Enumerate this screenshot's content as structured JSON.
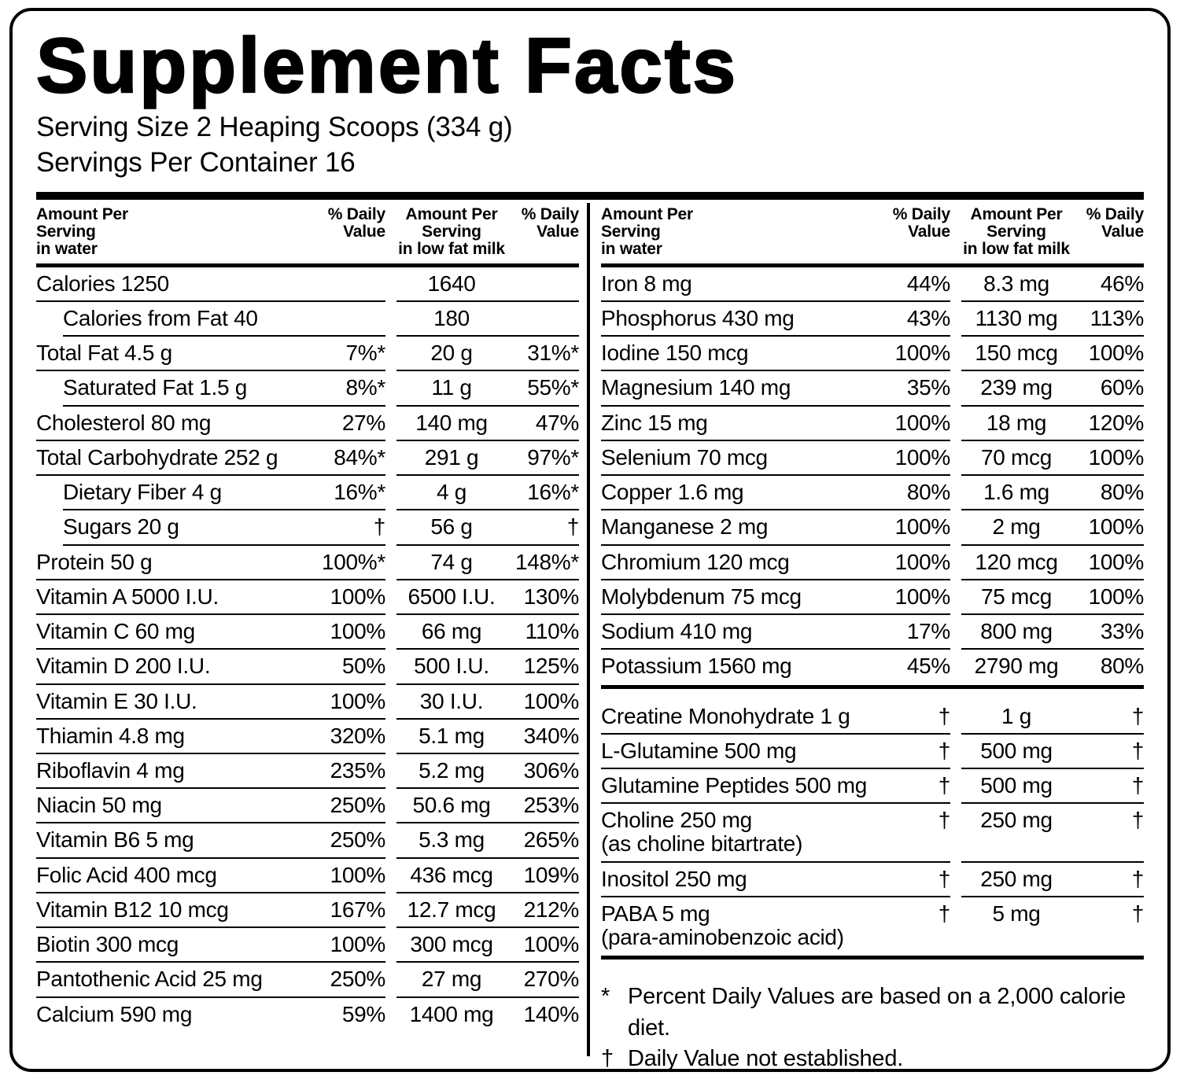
{
  "label": {
    "title": "Supplement Facts",
    "serving_size": "Serving Size 2 Heaping Scoops (334 g)",
    "servings_per_container": "Servings Per Container 16"
  },
  "colors": {
    "ink": "#000000",
    "paper": "#ffffff"
  },
  "column_headers": {
    "water": [
      "Amount Per",
      "Serving",
      "in water"
    ],
    "daily_value": [
      "% Daily",
      "Value"
    ],
    "milk": [
      "Amount Per",
      "Serving",
      "in low fat milk"
    ]
  },
  "table": {
    "left_rows": [
      {
        "name": "Calories 1250",
        "indent": false,
        "water_dv": "",
        "milk_amount": "1640",
        "milk_dv": ""
      },
      {
        "name": "Calories from Fat 40",
        "indent": true,
        "water_dv": "",
        "milk_amount": "180",
        "milk_dv": ""
      },
      {
        "name": "Total Fat 4.5 g",
        "indent": false,
        "water_dv": "7%*",
        "milk_amount": "20 g",
        "milk_dv": "31%*"
      },
      {
        "name": "Saturated Fat 1.5 g",
        "indent": true,
        "water_dv": "8%*",
        "milk_amount": "11 g",
        "milk_dv": "55%*"
      },
      {
        "name": "Cholesterol 80 mg",
        "indent": false,
        "water_dv": "27%",
        "milk_amount": "140 mg",
        "milk_dv": "47%"
      },
      {
        "name": "Total Carbohydrate 252 g",
        "indent": false,
        "water_dv": "84%*",
        "milk_amount": "291 g",
        "milk_dv": "97%*"
      },
      {
        "name": "Dietary Fiber 4 g",
        "indent": true,
        "water_dv": "16%*",
        "milk_amount": "4 g",
        "milk_dv": "16%*"
      },
      {
        "name": "Sugars 20 g",
        "indent": true,
        "water_dv": "†",
        "milk_amount": "56 g",
        "milk_dv": "†"
      },
      {
        "name": "Protein 50 g",
        "indent": false,
        "water_dv": "100%*",
        "milk_amount": "74 g",
        "milk_dv": "148%*"
      },
      {
        "name": "Vitamin A 5000 I.U.",
        "indent": false,
        "water_dv": "100%",
        "milk_amount": "6500 I.U.",
        "milk_dv": "130%"
      },
      {
        "name": "Vitamin C 60 mg",
        "indent": false,
        "water_dv": "100%",
        "milk_amount": "66 mg",
        "milk_dv": "110%"
      },
      {
        "name": "Vitamin D 200 I.U.",
        "indent": false,
        "water_dv": "50%",
        "milk_amount": "500 I.U.",
        "milk_dv": "125%"
      },
      {
        "name": "Vitamin E 30 I.U.",
        "indent": false,
        "water_dv": "100%",
        "milk_amount": "30 I.U.",
        "milk_dv": "100%"
      },
      {
        "name": "Thiamin 4.8 mg",
        "indent": false,
        "water_dv": "320%",
        "milk_amount": "5.1 mg",
        "milk_dv": "340%"
      },
      {
        "name": "Riboflavin 4 mg",
        "indent": false,
        "water_dv": "235%",
        "milk_amount": "5.2 mg",
        "milk_dv": "306%"
      },
      {
        "name": "Niacin 50 mg",
        "indent": false,
        "water_dv": "250%",
        "milk_amount": "50.6 mg",
        "milk_dv": "253%"
      },
      {
        "name": "Vitamin B6 5 mg",
        "indent": false,
        "water_dv": "250%",
        "milk_amount": "5.3 mg",
        "milk_dv": "265%"
      },
      {
        "name": "Folic Acid 400 mcg",
        "indent": false,
        "water_dv": "100%",
        "milk_amount": "436 mcg",
        "milk_dv": "109%"
      },
      {
        "name": "Vitamin B12 10 mcg",
        "indent": false,
        "water_dv": "167%",
        "milk_amount": "12.7 mcg",
        "milk_dv": "212%"
      },
      {
        "name": "Biotin 300 mcg",
        "indent": false,
        "water_dv": "100%",
        "milk_amount": "300 mcg",
        "milk_dv": "100%"
      },
      {
        "name": "Pantothenic Acid 25 mg",
        "indent": false,
        "water_dv": "250%",
        "milk_amount": "27 mg",
        "milk_dv": "270%"
      },
      {
        "name": "Calcium 590 mg",
        "indent": false,
        "water_dv": "59%",
        "milk_amount": "1400 mg",
        "milk_dv": "140%"
      }
    ],
    "right_minerals": [
      {
        "name": "Iron 8 mg",
        "indent": false,
        "water_dv": "44%",
        "milk_amount": "8.3 mg",
        "milk_dv": "46%"
      },
      {
        "name": "Phosphorus 430 mg",
        "indent": false,
        "water_dv": "43%",
        "milk_amount": "1130 mg",
        "milk_dv": "113%"
      },
      {
        "name": "Iodine 150 mcg",
        "indent": false,
        "water_dv": "100%",
        "milk_amount": "150 mcg",
        "milk_dv": "100%"
      },
      {
        "name": "Magnesium 140 mg",
        "indent": false,
        "water_dv": "35%",
        "milk_amount": "239 mg",
        "milk_dv": "60%"
      },
      {
        "name": "Zinc 15 mg",
        "indent": false,
        "water_dv": "100%",
        "milk_amount": "18 mg",
        "milk_dv": "120%"
      },
      {
        "name": "Selenium 70 mcg",
        "indent": false,
        "water_dv": "100%",
        "milk_amount": "70 mcg",
        "milk_dv": "100%"
      },
      {
        "name": "Copper 1.6 mg",
        "indent": false,
        "water_dv": "80%",
        "milk_amount": "1.6 mg",
        "milk_dv": "80%"
      },
      {
        "name": "Manganese 2 mg",
        "indent": false,
        "water_dv": "100%",
        "milk_amount": "2 mg",
        "milk_dv": "100%"
      },
      {
        "name": "Chromium 120 mcg",
        "indent": false,
        "water_dv": "100%",
        "milk_amount": "120 mcg",
        "milk_dv": "100%"
      },
      {
        "name": "Molybdenum 75 mcg",
        "indent": false,
        "water_dv": "100%",
        "milk_amount": "75 mcg",
        "milk_dv": "100%"
      },
      {
        "name": "Sodium 410 mg",
        "indent": false,
        "water_dv": "17%",
        "milk_amount": "800 mg",
        "milk_dv": "33%"
      },
      {
        "name": "Potassium 1560 mg",
        "indent": false,
        "water_dv": "45%",
        "milk_amount": "2790 mg",
        "milk_dv": "80%"
      }
    ],
    "right_other": [
      {
        "name": "Creatine Monohydrate 1 g",
        "indent": false,
        "water_dv": "†",
        "milk_amount": "1 g",
        "milk_dv": "†"
      },
      {
        "name": "L-Glutamine 500 mg",
        "indent": false,
        "water_dv": "†",
        "milk_amount": "500 mg",
        "milk_dv": "†"
      },
      {
        "name": "Glutamine Peptides 500 mg",
        "indent": false,
        "water_dv": "†",
        "milk_amount": "500 mg",
        "milk_dv": "†"
      },
      {
        "name": "Choline 250 mg",
        "name2": "(as choline bitartrate)",
        "indent": false,
        "water_dv": "†",
        "milk_amount": "250 mg",
        "milk_dv": "†"
      },
      {
        "name": "Inositol 250 mg",
        "indent": false,
        "water_dv": "†",
        "milk_amount": "250 mg",
        "milk_dv": "†"
      },
      {
        "name": "PABA 5 mg",
        "name2": "(para-aminobenzoic acid)",
        "indent": false,
        "water_dv": "†",
        "milk_amount": "5 mg",
        "milk_dv": "†"
      }
    ]
  },
  "footnotes": [
    {
      "marker": "*",
      "text": "Percent Daily Values are based on a 2,000 calorie diet."
    },
    {
      "marker": "†",
      "text": "Daily Value not established."
    }
  ]
}
